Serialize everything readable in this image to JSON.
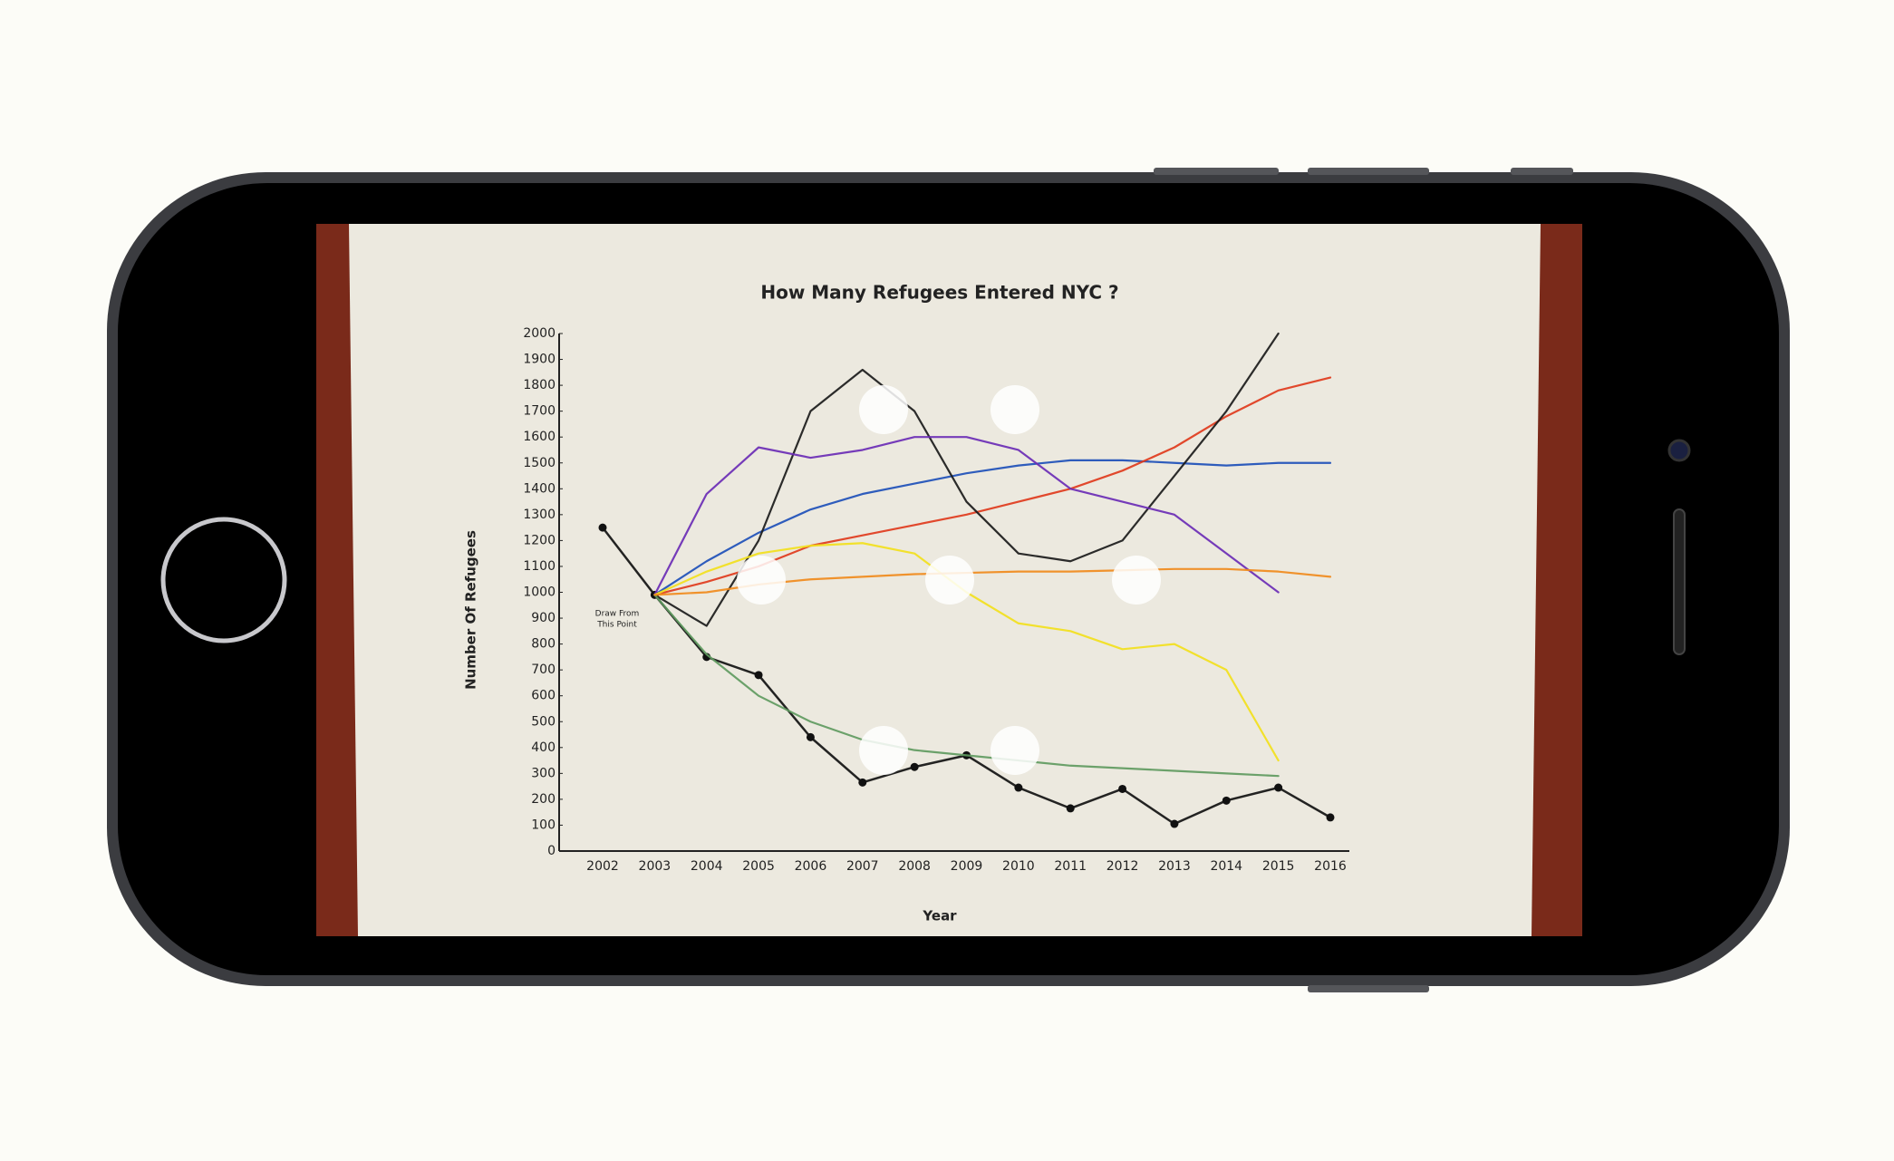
{
  "chart_data": {
    "type": "line",
    "title": "How Many Refugees Entered NYC ?",
    "x_label": "Year",
    "y_label": "Number Of Refugees",
    "annotation": [
      "Draw From",
      "This Point"
    ],
    "categories": [
      "2002",
      "2003",
      "2004",
      "2005",
      "2006",
      "2007",
      "2008",
      "2009",
      "2010",
      "2011",
      "2012",
      "2013",
      "2014",
      "2015",
      "2016"
    ],
    "ylim": [
      0,
      2000
    ],
    "yticks": [
      0,
      100,
      200,
      300,
      400,
      500,
      600,
      700,
      800,
      900,
      1000,
      1100,
      1200,
      1300,
      1400,
      1500,
      1600,
      1700,
      1800,
      1900,
      2000
    ],
    "series": [
      {
        "color": "#111111",
        "markers": true,
        "values": [
          1250,
          990,
          750,
          680,
          440,
          265,
          325,
          370,
          245,
          165,
          240,
          105,
          195,
          245,
          130
        ]
      },
      {
        "color": "#1d4fb8",
        "values": [
          null,
          990,
          1120,
          1230,
          1320,
          1380,
          1420,
          1460,
          1490,
          1510,
          1510,
          1500,
          1490,
          1500,
          1500
        ]
      },
      {
        "color": "#e03a1c",
        "values": [
          null,
          990,
          1040,
          1100,
          1180,
          1220,
          1260,
          1300,
          1350,
          1400,
          1470,
          1560,
          1680,
          1780,
          1830
        ]
      },
      {
        "color": "#1a1a1a",
        "values": [
          null,
          990,
          870,
          1200,
          1700,
          1860,
          1700,
          1350,
          1150,
          1120,
          1200,
          1450,
          1700,
          2000,
          null
        ]
      },
      {
        "color": "#6a2bb5",
        "values": [
          null,
          990,
          1380,
          1560,
          1520,
          1550,
          1600,
          1600,
          1550,
          1400,
          1350,
          1300,
          1150,
          1000,
          null
        ]
      },
      {
        "color": "#f2e01c",
        "values": [
          null,
          990,
          1080,
          1150,
          1180,
          1190,
          1150,
          1000,
          880,
          850,
          780,
          800,
          700,
          350,
          null
        ]
      },
      {
        "color": "#5f9a5f",
        "values": [
          null,
          990,
          760,
          600,
          500,
          430,
          390,
          370,
          350,
          330,
          320,
          310,
          300,
          290,
          null
        ]
      },
      {
        "color": "#f08a1c",
        "values": [
          null,
          990,
          1000,
          1030,
          1050,
          1060,
          1070,
          1075,
          1080,
          1080,
          1085,
          1090,
          1090,
          1080,
          1060
        ]
      }
    ]
  }
}
